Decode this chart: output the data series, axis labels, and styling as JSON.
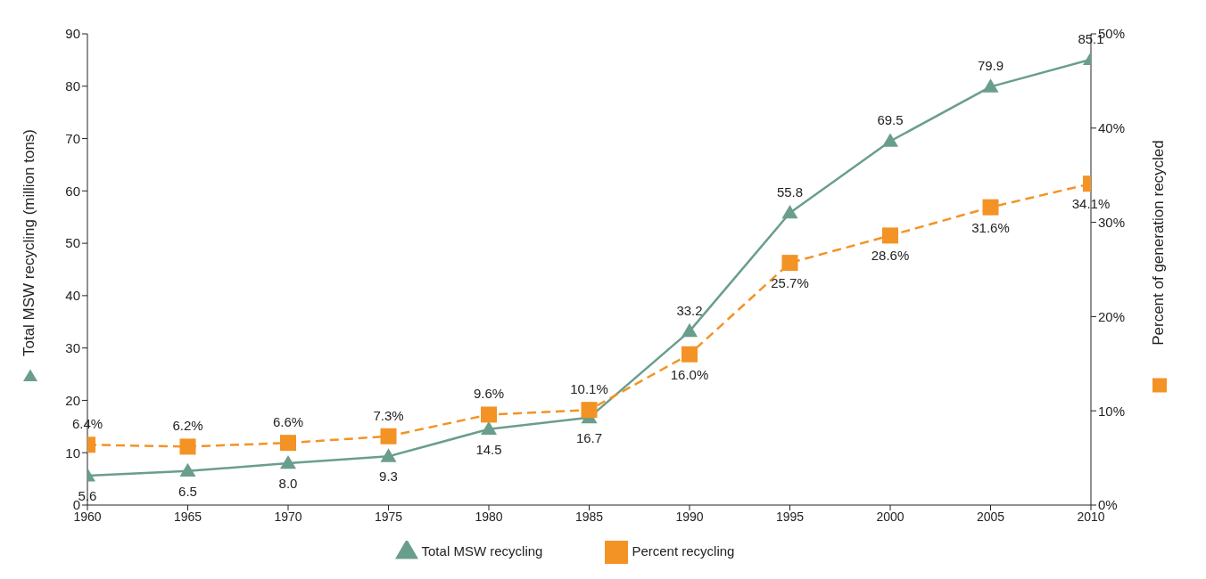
{
  "chart_data": {
    "type": "line",
    "x": [
      1960,
      1965,
      1970,
      1975,
      1980,
      1985,
      1990,
      1995,
      2000,
      2005,
      2010
    ],
    "xlim": [
      1960,
      2010
    ],
    "xticks": [
      1960,
      1965,
      1970,
      1975,
      1980,
      1985,
      1990,
      1995,
      2000,
      2005,
      2010
    ],
    "ylim": [
      0,
      90
    ],
    "yticks": [
      0,
      10,
      20,
      30,
      40,
      50,
      60,
      70,
      80,
      90
    ],
    "y2lim": [
      0,
      50
    ],
    "y2ticks": [
      {
        "value": 0,
        "label": "0%"
      },
      {
        "value": 10,
        "label": "10%"
      },
      {
        "value": 20,
        "label": "20%"
      },
      {
        "value": 30,
        "label": "30%"
      },
      {
        "value": 40,
        "label": "40%"
      },
      {
        "value": 50,
        "label": "50%"
      }
    ],
    "ylabel": "Total MSW recycling (million tons)",
    "y2label": "Percent of generation recycled",
    "series": [
      {
        "name": "Total MSW recycling",
        "color": "#6a9e8c",
        "marker": "triangle",
        "line_style": "solid",
        "values": [
          5.6,
          6.5,
          8.0,
          9.3,
          14.5,
          16.7,
          33.2,
          55.8,
          69.5,
          79.9,
          85.1
        ],
        "value_labels": [
          "5.6",
          "6.5",
          "8.0",
          "9.3",
          "14.5",
          "16.7",
          "33.2",
          "55.8",
          "69.5",
          "79.9",
          "85.1"
        ]
      },
      {
        "name": "Percent recycling",
        "color": "#f39325",
        "marker": "square",
        "line_style": "dashed",
        "axis": "y2",
        "values": [
          6.4,
          6.2,
          6.6,
          7.3,
          9.6,
          10.1,
          16.0,
          25.7,
          28.6,
          31.6,
          34.1
        ],
        "value_labels": [
          "6.4%",
          "6.2%",
          "6.6%",
          "7.3%",
          "9.6%",
          "10.1%",
          "16.0%",
          "25.7%",
          "28.6%",
          "31.6%",
          "34.1%"
        ]
      }
    ],
    "legend": "bottom"
  }
}
